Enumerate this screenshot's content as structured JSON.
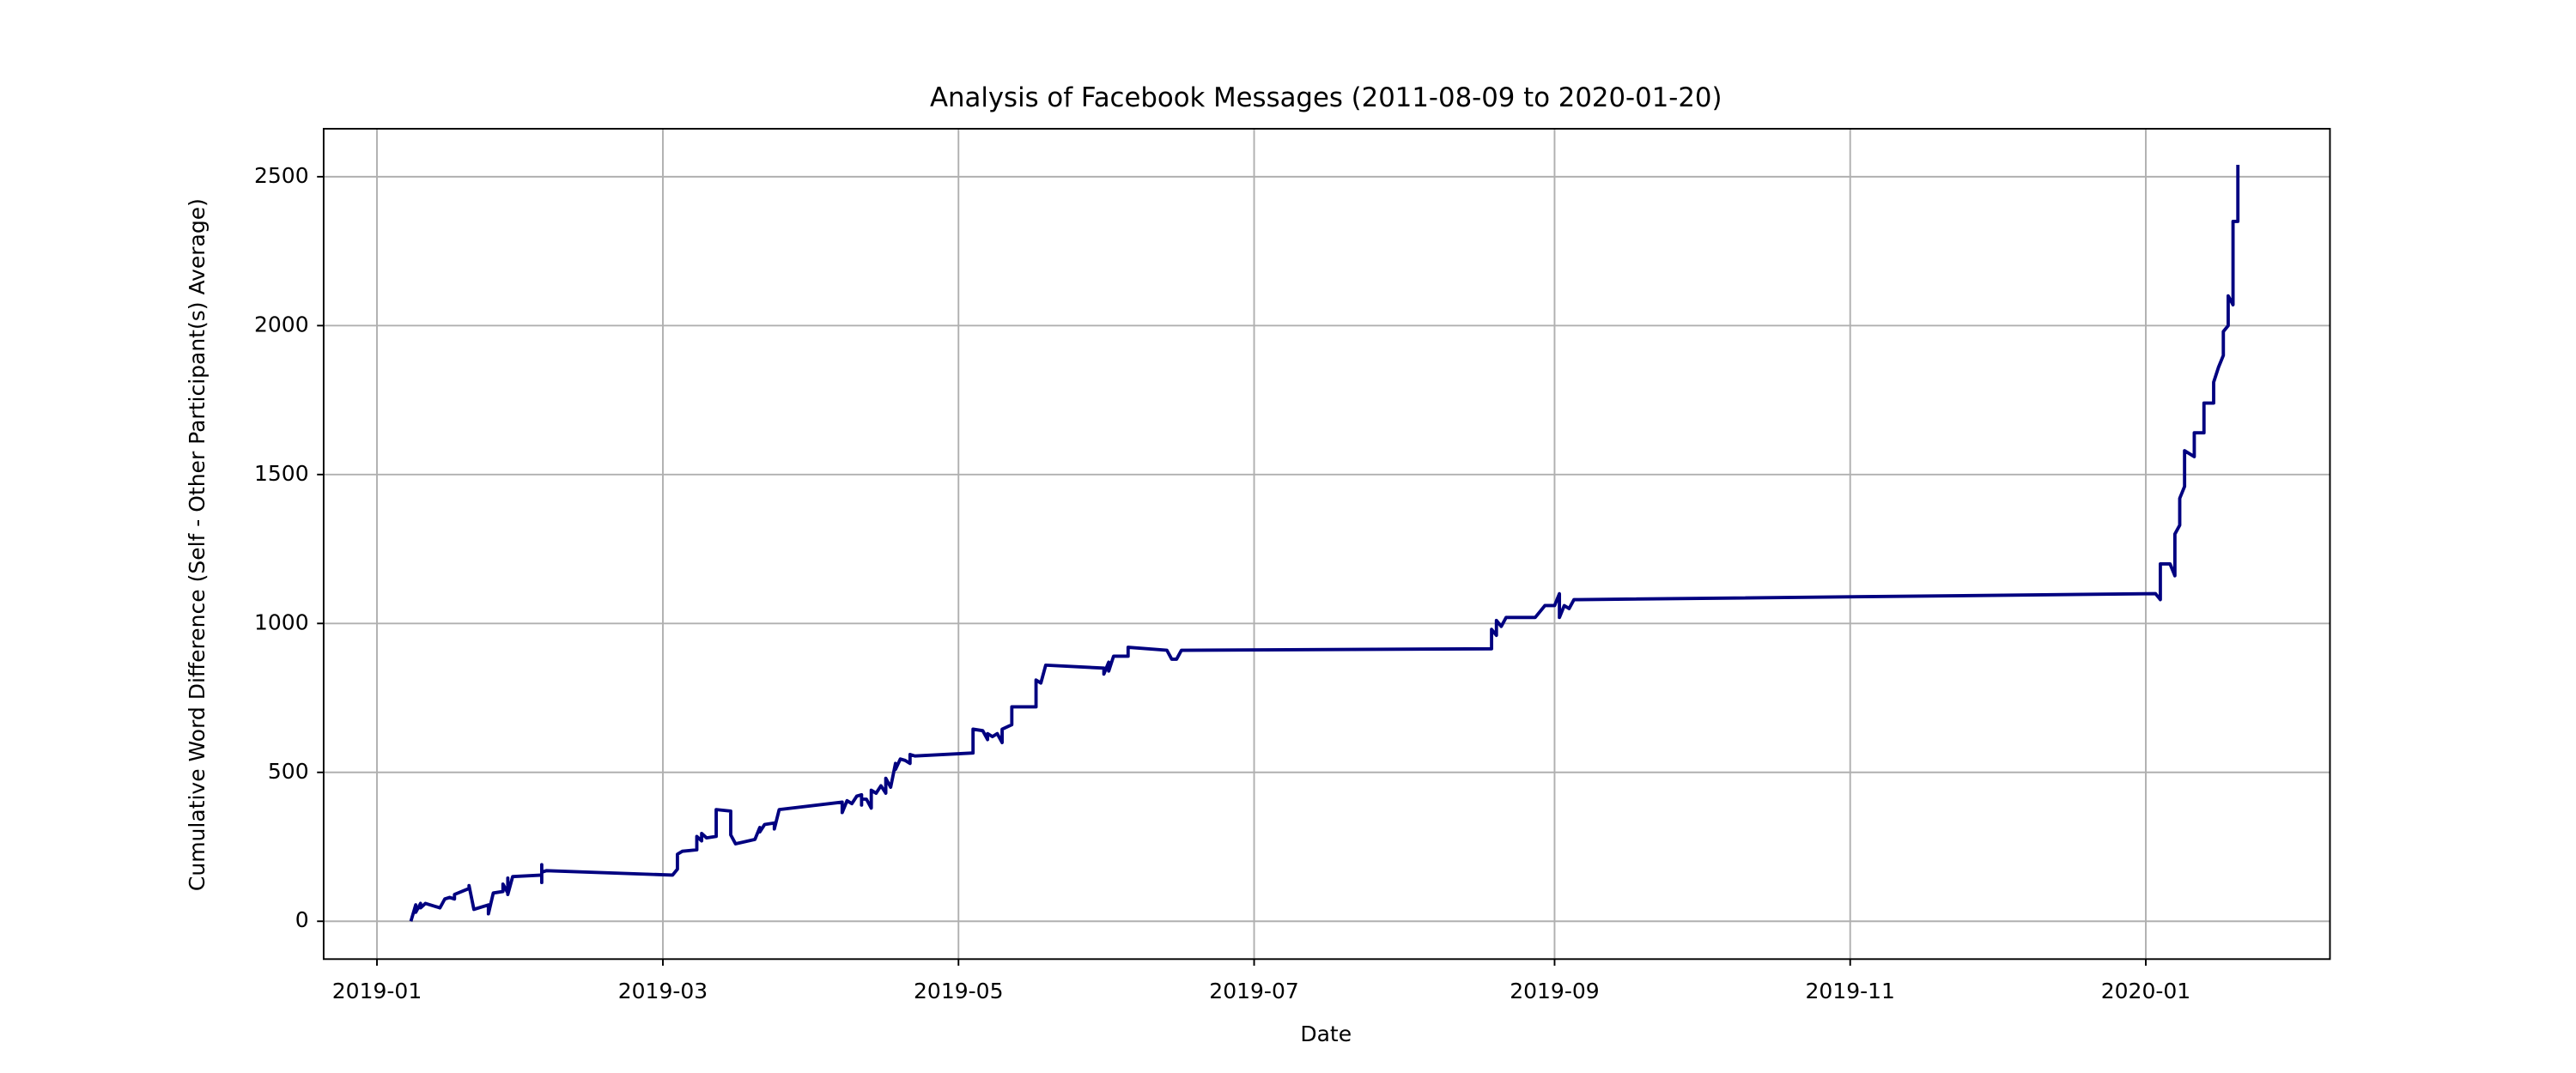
{
  "chart_data": {
    "type": "line",
    "title": "Analysis of Facebook Messages (2011-08-09 to 2020-01-20)",
    "xlabel": "Date",
    "ylabel": "Cumulative Word Difference (Self - Other Participant(s) Average)",
    "color": "#000080",
    "grid": true,
    "xlim": [
      "2018-12-21",
      "2020-02-08"
    ],
    "ylim": [
      -127,
      2661
    ],
    "xticks": [
      {
        "value": "2019-01-01",
        "label": "2019-01"
      },
      {
        "value": "2019-03-01",
        "label": "2019-03"
      },
      {
        "value": "2019-05-01",
        "label": "2019-05"
      },
      {
        "value": "2019-07-01",
        "label": "2019-07"
      },
      {
        "value": "2019-09-01",
        "label": "2019-09"
      },
      {
        "value": "2019-11-01",
        "label": "2019-11"
      },
      {
        "value": "2020-01-01",
        "label": "2020-01"
      }
    ],
    "yticks": [
      0,
      500,
      1000,
      1500,
      2000,
      2500
    ],
    "x": [
      "2019-01-08",
      "2019-01-09",
      "2019-01-09",
      "2019-01-10",
      "2019-01-10",
      "2019-01-11",
      "2019-01-14",
      "2019-01-15",
      "2019-01-16",
      "2019-01-17",
      "2019-01-17",
      "2019-01-20",
      "2019-01-20",
      "2019-01-21",
      "2019-01-24",
      "2019-01-24",
      "2019-01-25",
      "2019-01-27",
      "2019-01-27",
      "2019-01-28",
      "2019-01-28",
      "2019-01-28",
      "2019-01-29",
      "2019-02-04",
      "2019-02-04",
      "2019-02-04",
      "2019-02-04",
      "2019-02-05",
      "2019-03-03",
      "2019-03-04",
      "2019-03-04",
      "2019-03-05",
      "2019-03-08",
      "2019-03-08",
      "2019-03-09",
      "2019-03-09",
      "2019-03-10",
      "2019-03-12",
      "2019-03-12",
      "2019-03-15",
      "2019-03-15",
      "2019-03-16",
      "2019-03-20",
      "2019-03-21",
      "2019-03-21",
      "2019-03-22",
      "2019-03-24",
      "2019-03-24",
      "2019-03-25",
      "2019-04-07",
      "2019-04-07",
      "2019-04-08",
      "2019-04-09",
      "2019-04-10",
      "2019-04-11",
      "2019-04-11",
      "2019-04-11",
      "2019-04-12",
      "2019-04-13",
      "2019-04-13",
      "2019-04-14",
      "2019-04-15",
      "2019-04-16",
      "2019-04-16",
      "2019-04-17",
      "2019-04-18",
      "2019-04-18",
      "2019-04-19",
      "2019-04-20",
      "2019-04-21",
      "2019-04-21",
      "2019-04-22",
      "2019-05-04",
      "2019-05-04",
      "2019-05-06",
      "2019-05-07",
      "2019-05-07",
      "2019-05-08",
      "2019-05-09",
      "2019-05-10",
      "2019-05-10",
      "2019-05-12",
      "2019-05-12",
      "2019-05-17",
      "2019-05-17",
      "2019-05-18",
      "2019-05-19",
      "2019-05-31",
      "2019-05-31",
      "2019-06-01",
      "2019-06-01",
      "2019-06-02",
      "2019-06-05",
      "2019-06-05",
      "2019-06-13",
      "2019-06-14",
      "2019-06-15",
      "2019-06-16",
      "2019-08-19",
      "2019-08-19",
      "2019-08-20",
      "2019-08-20",
      "2019-08-21",
      "2019-08-22",
      "2019-08-28",
      "2019-08-29",
      "2019-08-30",
      "2019-09-01",
      "2019-09-02",
      "2019-09-02",
      "2019-09-03",
      "2019-09-04",
      "2019-09-05",
      "2019-09-06",
      "2020-01-03",
      "2020-01-04",
      "2020-01-04",
      "2020-01-05",
      "2020-01-06",
      "2020-01-07",
      "2020-01-07",
      "2020-01-08",
      "2020-01-08",
      "2020-01-08",
      "2020-01-09",
      "2020-01-09",
      "2020-01-11",
      "2020-01-11",
      "2020-01-13",
      "2020-01-13",
      "2020-01-15",
      "2020-01-15",
      "2020-01-16",
      "2020-01-17",
      "2020-01-17",
      "2020-01-18",
      "2020-01-18",
      "2020-01-19",
      "2020-01-19",
      "2020-01-20",
      "2020-01-20"
    ],
    "values": [
      0,
      55,
      30,
      60,
      45,
      60,
      45,
      75,
      80,
      75,
      90,
      110,
      120,
      40,
      55,
      25,
      95,
      100,
      125,
      95,
      145,
      90,
      150,
      155,
      130,
      190,
      165,
      170,
      155,
      175,
      225,
      235,
      240,
      285,
      270,
      295,
      280,
      285,
      375,
      370,
      290,
      260,
      275,
      315,
      300,
      325,
      330,
      310,
      375,
      400,
      365,
      405,
      395,
      420,
      425,
      390,
      410,
      410,
      380,
      440,
      430,
      455,
      430,
      480,
      450,
      530,
      510,
      545,
      540,
      530,
      560,
      555,
      565,
      645,
      640,
      610,
      630,
      620,
      630,
      600,
      645,
      660,
      720,
      720,
      810,
      800,
      860,
      850,
      830,
      870,
      840,
      890,
      890,
      920,
      910,
      880,
      880,
      910,
      915,
      980,
      960,
      1010,
      990,
      1020,
      1020,
      1040,
      1060,
      1060,
      1100,
      1020,
      1060,
      1050,
      1080,
      1080,
      1100,
      1080,
      1200,
      1200,
      1200,
      1160,
      1300,
      1330,
      1380,
      1420,
      1460,
      1580,
      1560,
      1640,
      1640,
      1740,
      1740,
      1810,
      1860,
      1900,
      1980,
      2000,
      2100,
      2070,
      2350,
      2350,
      2540
    ]
  }
}
